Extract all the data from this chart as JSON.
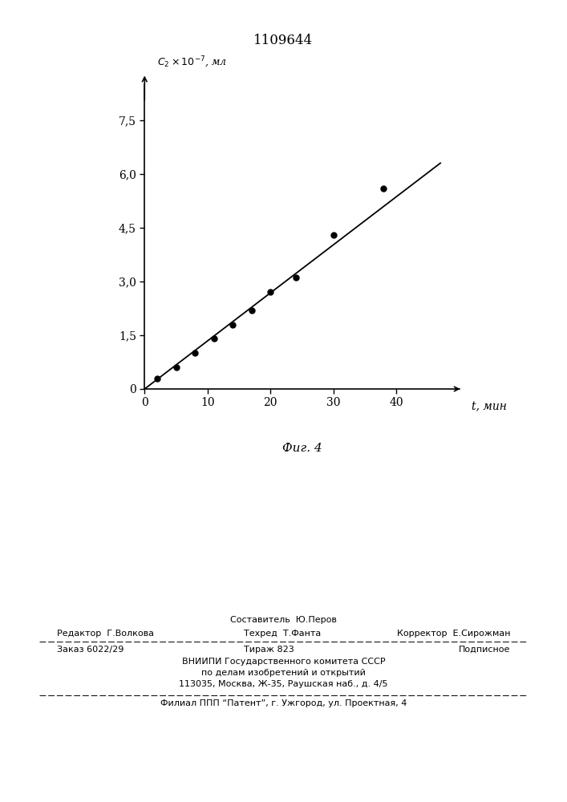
{
  "title": "1109644",
  "xlabel": "t, мин",
  "fig_label": "Фиг. 4",
  "x_data": [
    2,
    5,
    8,
    11,
    14,
    17,
    20,
    24,
    30,
    38
  ],
  "y_data": [
    0.3,
    0.6,
    1.0,
    1.4,
    1.8,
    2.2,
    2.7,
    3.1,
    4.3,
    5.6
  ],
  "line_x": [
    0,
    47
  ],
  "line_y": [
    0,
    6.3
  ],
  "xlim": [
    0,
    50
  ],
  "ylim": [
    0,
    8.5
  ],
  "xticks": [
    0,
    10,
    20,
    30,
    40
  ],
  "yticks": [
    0,
    1.5,
    3.0,
    4.5,
    6.0,
    7.5
  ],
  "ytick_labels": [
    "0",
    "1,5",
    "3,0",
    "4,5",
    "6,0",
    "7,5"
  ],
  "xtick_labels": [
    "0",
    "10",
    "20",
    "30",
    "40"
  ],
  "line_color": "#000000",
  "dot_color": "#000000",
  "footer_sestavitel": "Составитель  Ю.Перов",
  "footer_redaktor": "Редактор  Г.Волкова",
  "footer_tehred": "Техред  Т.Фанта",
  "footer_korrektor": "Корректор  Е.Сирожман",
  "footer_zakaz": "Заказ 6022/29",
  "footer_tirazh": "Тираж 823",
  "footer_podpisnoe": "Подписное",
  "footer_vniip1": "ВНИИПИ Государственного комитета СССР",
  "footer_vniip2": "по делам изобретений и открытий",
  "footer_vniip3": "113035, Москва, Ж-35, Раушская наб., д. 4/5",
  "footer_filial": "Филиал ППП “Патент”, г. Ужгород, ул. Проектная, 4"
}
